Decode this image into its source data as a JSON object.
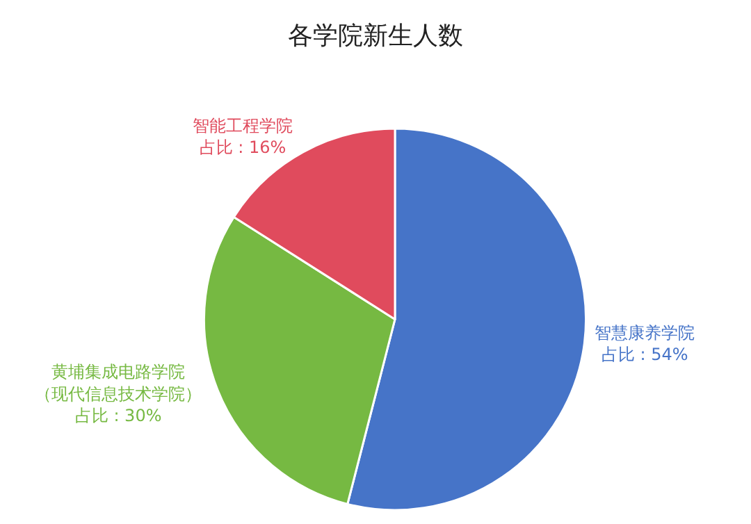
{
  "chart_data": {
    "type": "pie",
    "title": "各学院新生人数",
    "categories": [
      "智慧康养学院",
      "黄埔集成电路学院（现代信息技术学院）",
      "智能工程学院"
    ],
    "values": [
      54,
      30,
      16
    ],
    "colors": [
      "#4674c8",
      "#76b942",
      "#e04b5d"
    ],
    "value_labels": [
      "占比 : 54%",
      "占比 : 30%",
      "占比 : 16%"
    ],
    "legend": false
  }
}
